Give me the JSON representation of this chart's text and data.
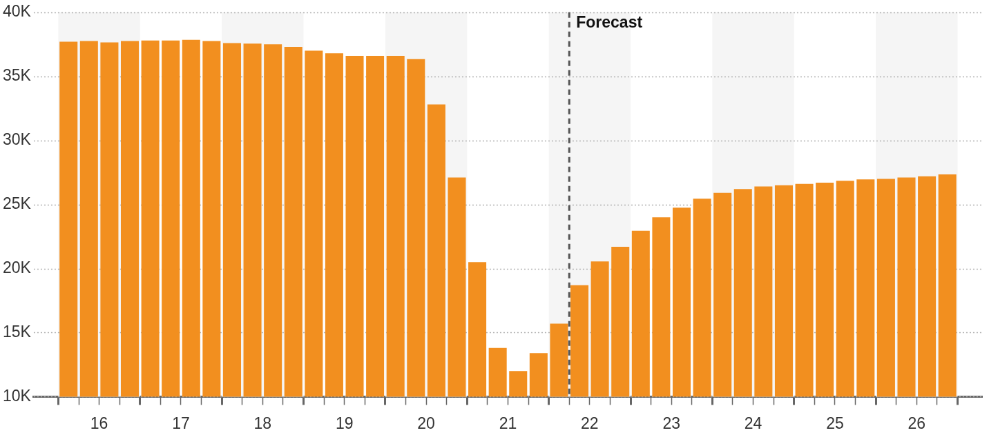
{
  "chart_data": {
    "type": "bar",
    "x": [
      16.125,
      16.375,
      16.625,
      16.875,
      17.125,
      17.375,
      17.625,
      17.875,
      18.125,
      18.375,
      18.625,
      18.875,
      19.125,
      19.375,
      19.625,
      19.875,
      20.125,
      20.375,
      20.625,
      20.875,
      21.125,
      21.375,
      21.625,
      21.875,
      22.125,
      22.375,
      22.625,
      22.875,
      23.125,
      23.375,
      23.625,
      23.875,
      24.125,
      24.375,
      24.625,
      24.875,
      25.125,
      25.375,
      25.625,
      25.875,
      26.125,
      26.375,
      26.625,
      26.875
    ],
    "values": [
      37700,
      37750,
      37650,
      37750,
      37800,
      37800,
      37850,
      37750,
      37600,
      37550,
      37500,
      37300,
      37000,
      36800,
      36600,
      36600,
      36600,
      36350,
      32800,
      27100,
      20500,
      13800,
      12000,
      13400,
      15700,
      18700,
      20550,
      21700,
      22950,
      24000,
      24750,
      25450,
      25900,
      26200,
      26400,
      26500,
      26600,
      26700,
      26850,
      26950,
      27000,
      27100,
      27200,
      27350
    ],
    "color": "#f28f1f",
    "xlim": [
      15.7,
      27.3
    ],
    "xticks": [
      {
        "value": 16,
        "label": null
      },
      {
        "value": 16.25,
        "label": null
      },
      {
        "value": 16.5,
        "label": "16"
      },
      {
        "value": 16.75,
        "label": null
      },
      {
        "value": 17,
        "label": null
      },
      {
        "value": 17.25,
        "label": null
      },
      {
        "value": 17.5,
        "label": "17"
      },
      {
        "value": 17.75,
        "label": null
      },
      {
        "value": 18,
        "label": null
      },
      {
        "value": 18.25,
        "label": null
      },
      {
        "value": 18.5,
        "label": "18"
      },
      {
        "value": 18.75,
        "label": null
      },
      {
        "value": 19,
        "label": null
      },
      {
        "value": 19.25,
        "label": null
      },
      {
        "value": 19.5,
        "label": "19"
      },
      {
        "value": 19.75,
        "label": null
      },
      {
        "value": 20,
        "label": null
      },
      {
        "value": 20.25,
        "label": null
      },
      {
        "value": 20.5,
        "label": "20"
      },
      {
        "value": 20.75,
        "label": null
      },
      {
        "value": 21,
        "label": null
      },
      {
        "value": 21.25,
        "label": null
      },
      {
        "value": 21.5,
        "label": "21"
      },
      {
        "value": 21.75,
        "label": null
      },
      {
        "value": 22,
        "label": null
      },
      {
        "value": 22.25,
        "label": null
      },
      {
        "value": 22.5,
        "label": "22"
      },
      {
        "value": 22.75,
        "label": null
      },
      {
        "value": 23,
        "label": null
      },
      {
        "value": 23.25,
        "label": null
      },
      {
        "value": 23.5,
        "label": "23"
      },
      {
        "value": 23.75,
        "label": null
      },
      {
        "value": 24,
        "label": null
      },
      {
        "value": 24.25,
        "label": null
      },
      {
        "value": 24.5,
        "label": "24"
      },
      {
        "value": 24.75,
        "label": null
      },
      {
        "value": 25,
        "label": null
      },
      {
        "value": 25.25,
        "label": null
      },
      {
        "value": 25.5,
        "label": "25"
      },
      {
        "value": 25.75,
        "label": null
      },
      {
        "value": 26,
        "label": null
      },
      {
        "value": 26.25,
        "label": null
      },
      {
        "value": 26.5,
        "label": "26"
      },
      {
        "value": 26.75,
        "label": null
      },
      {
        "value": 27,
        "label": null
      }
    ],
    "ylim": [
      10000,
      40000
    ],
    "yticks": [
      {
        "value": 10000,
        "label": "10K"
      },
      {
        "value": 15000,
        "label": "15K"
      },
      {
        "value": 20000,
        "label": "20K"
      },
      {
        "value": 25000,
        "label": "25K"
      },
      {
        "value": 30000,
        "label": "30K"
      },
      {
        "value": 35000,
        "label": "35K"
      },
      {
        "value": 40000,
        "label": "40K"
      }
    ],
    "grid": "y",
    "bands": [
      {
        "axis": "x",
        "from": 16,
        "to": 17,
        "color": "#f5f5f5"
      },
      {
        "axis": "x",
        "from": 18,
        "to": 19,
        "color": "#f5f5f5"
      },
      {
        "axis": "x",
        "from": 20,
        "to": 21,
        "color": "#f5f5f5"
      },
      {
        "axis": "x",
        "from": 22,
        "to": 23,
        "color": "#f5f5f5"
      },
      {
        "axis": "x",
        "from": 24,
        "to": 25,
        "color": "#f5f5f5"
      },
      {
        "axis": "x",
        "from": 26,
        "to": 27,
        "color": "#f5f5f5"
      }
    ],
    "ref_lines": [
      {
        "axis": "x",
        "value": 22.25,
        "label": "Forecast",
        "color": "#555555",
        "line_style": "dashed"
      }
    ],
    "legend": false
  }
}
